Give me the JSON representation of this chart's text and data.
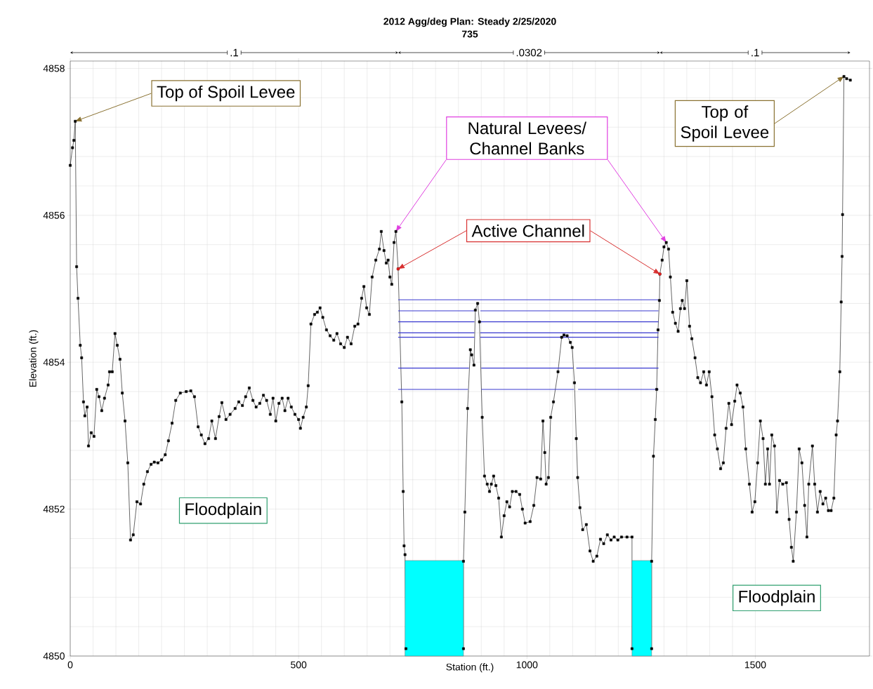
{
  "chart_data": {
    "type": "line",
    "title": "2012 Agg/deg      Plan: Steady      2/25/2020",
    "subtitle": "735",
    "xlabel": "Station (ft.)",
    "ylabel": "Elevation (ft.)",
    "xlim": [
      0,
      1750
    ],
    "ylim": [
      4850,
      4858.1
    ],
    "xticks": [
      0,
      500,
      1000,
      1500
    ],
    "yticks": [
      4850,
      4852,
      4854,
      4856,
      4858
    ],
    "grid": true,
    "annotations": [
      ".1",
      ".0302",
      ".1",
      {
        "text": "Top of Spoil Levee",
        "x": 11,
        "y": 4857.28
      },
      {
        "text": "Top of Spoil Levee",
        "x": 1694,
        "y": 4857.89
      },
      "Natural Levees/ Channel Banks",
      {
        "text": "Active Channel",
        "x": 718,
        "y": 4855.27
      },
      "Floodplain",
      "Floodplain"
    ],
    "series": [
      {
        "color": "#000000",
        "marker": "square",
        "x": [
          0,
          5,
          8,
          11,
          14,
          17,
          22,
          25,
          29,
          32,
          37,
          40,
          46,
          52,
          58,
          63,
          69,
          75,
          83,
          86,
          92,
          98,
          103,
          109,
          114,
          120,
          126,
          132,
          138,
          146,
          154,
          161,
          169,
          177,
          184,
          192,
          200,
          208,
          215,
          223,
          231,
          241,
          254,
          264,
          272,
          280,
          287,
          295,
          303,
          310,
          318,
          326,
          332,
          341,
          350,
          361,
          369,
          377,
          384,
          392,
          400,
          407,
          415,
          423,
          430,
          438,
          444,
          450,
          457,
          464,
          470,
          477,
          484,
          492,
          500,
          504,
          510,
          517,
          521,
          527,
          535,
          541,
          547,
          553,
          561,
          569,
          577,
          584,
          592,
          600,
          607,
          615,
          623,
          630,
          638,
          643,
          649,
          655,
          661,
          669,
          677,
          681,
          687,
          692,
          696,
          700,
          704,
          709,
          713,
          718,
          726,
          729,
          731,
          733,
          735,
          861,
          861,
          864,
          870,
          876,
          879,
          884,
          887,
          892,
          896,
          902,
          907,
          913,
          918,
          922,
          927,
          932,
          938,
          944,
          950,
          956,
          962,
          968,
          976,
          984,
          990,
          996,
          1007,
          1015,
          1022,
          1030,
          1035,
          1039,
          1042,
          1047,
          1052,
          1058,
          1068,
          1076,
          1081,
          1088,
          1095,
          1099,
          1104,
          1108,
          1111,
          1116,
          1122,
          1130,
          1138,
          1145,
          1153,
          1161,
          1168,
          1176,
          1184,
          1191,
          1199,
          1207,
          1219,
          1230,
          1230,
          1273,
          1273,
          1277,
          1281,
          1284,
          1287,
          1290,
          1291,
          1296,
          1300,
          1305,
          1310,
          1314,
          1319,
          1325,
          1331,
          1336,
          1340,
          1345,
          1350,
          1356,
          1361,
          1368,
          1374,
          1380,
          1387,
          1393,
          1399,
          1405,
          1411,
          1417,
          1424,
          1430,
          1436,
          1442,
          1448,
          1455,
          1460,
          1467,
          1473,
          1479,
          1487,
          1493,
          1499,
          1505,
          1511,
          1517,
          1522,
          1527,
          1531,
          1536,
          1542,
          1547,
          1553,
          1560,
          1568,
          1574,
          1579,
          1583,
          1590,
          1596,
          1602,
          1608,
          1613,
          1617,
          1625,
          1630,
          1636,
          1642,
          1648,
          1654,
          1660,
          1666,
          1672,
          1677,
          1680,
          1685,
          1688,
          1690,
          1691,
          1694,
          1700,
          1708
        ],
        "values": [
          4856.68,
          4856.92,
          4857.02,
          4857.28,
          4855.3,
          4854.87,
          4854.23,
          4854.06,
          4853.46,
          4853.27,
          4853.39,
          4852.86,
          4853.04,
          4852.99,
          4853.63,
          4853.53,
          4853.34,
          4853.51,
          4853.69,
          4853.87,
          4853.87,
          4854.39,
          4854.23,
          4854.04,
          4853.58,
          4853.2,
          4852.63,
          4851.58,
          4851.65,
          4852.1,
          4852.07,
          4852.34,
          4852.51,
          4852.61,
          4852.64,
          4852.63,
          4852.67,
          4852.74,
          4852.93,
          4853.17,
          4853.48,
          4853.58,
          4853.6,
          4853.61,
          4853.53,
          4853.12,
          4853.01,
          4852.89,
          4852.96,
          4853.2,
          4852.96,
          4853.26,
          4853.45,
          4853.22,
          4853.29,
          4853.37,
          4853.46,
          4853.41,
          4853.53,
          4853.65,
          4853.48,
          4853.39,
          4853.44,
          4853.55,
          4853.48,
          4853.29,
          4853.51,
          4853.2,
          4853.44,
          4853.51,
          4853.34,
          4853.51,
          4853.39,
          4853.29,
          4853.22,
          4853.1,
          4853.25,
          4853.39,
          4853.68,
          4854.52,
          4854.65,
          4854.68,
          4854.74,
          4854.61,
          4854.44,
          4854.36,
          4854.3,
          4854.39,
          4854.25,
          4854.2,
          4854.34,
          4854.25,
          4854.49,
          4854.52,
          4854.87,
          4855.03,
          4854.74,
          4854.65,
          4855.16,
          4855.39,
          4855.54,
          4855.78,
          4855.52,
          4855.35,
          4855.39,
          4855.16,
          4855.06,
          4855.63,
          4855.78,
          4855.27,
          4853.46,
          4852.24,
          4851.5,
          4851.38,
          4850.1,
          4850.1,
          4851.29,
          4851.96,
          4853.37,
          4854.17,
          4854.1,
          4853.96,
          4854.71,
          4854.8,
          4854.55,
          4853.25,
          4852.45,
          4852.34,
          4852.24,
          4852.34,
          4852.45,
          4852.32,
          4852.15,
          4851.62,
          4851.91,
          4852.1,
          4852.03,
          4852.24,
          4852.24,
          4852.2,
          4852.0,
          4851.81,
          4851.83,
          4852.05,
          4852.43,
          4852.41,
          4853.2,
          4852.77,
          4852.34,
          4852.43,
          4853.25,
          4853.46,
          4853.87,
          4854.34,
          4854.37,
          4854.36,
          4854.27,
          4854.2,
          4853.72,
          4852.96,
          4852.43,
          4852.02,
          4851.72,
          4851.79,
          4851.43,
          4851.29,
          4851.36,
          4851.59,
          4851.53,
          4851.65,
          4851.58,
          4851.62,
          4851.58,
          4851.62,
          4851.62,
          4851.62,
          4850.1,
          4850.1,
          4851.29,
          4852.72,
          4853.22,
          4853.63,
          4854.44,
          4854.84,
          4855.2,
          4855.39,
          4855.57,
          4855.63,
          4855.54,
          4855.16,
          4854.68,
          4854.53,
          4854.42,
          4854.73,
          4854.84,
          4854.73,
          4855.11,
          4854.49,
          4854.32,
          4854.06,
          4853.79,
          4853.72,
          4853.87,
          4853.69,
          4853.87,
          4853.53,
          4853.01,
          4852.82,
          4852.55,
          4852.63,
          4853.1,
          4853.44,
          4853.15,
          4853.47,
          4853.69,
          4853.58,
          4853.39,
          4852.82,
          4852.34,
          4851.96,
          4852.1,
          4852.63,
          4853.2,
          4852.96,
          4852.34,
          4852.82,
          4852.34,
          4853.01,
          4852.86,
          4851.96,
          4852.39,
          4852.34,
          4852.36,
          4851.86,
          4851.48,
          4851.29,
          4851.96,
          4852.82,
          4852.63,
          4852.05,
          4851.62,
          4852.34,
          4852.86,
          4852.34,
          4851.96,
          4852.24,
          4852.07,
          4852.15,
          4851.98,
          4851.98,
          4852.15,
          4853.01,
          4853.2,
          4853.87,
          4854.82,
          4855.44,
          4856.01,
          4857.89,
          4857.86,
          4857.84
        ]
      },
      {
        "type": "line",
        "color": "#3a3ad0",
        "x": [
          718,
          1288
        ],
        "values": [
          4854.85,
          4854.85
        ]
      },
      {
        "type": "line",
        "color": "#3a3ad0",
        "x": [
          718,
          885,
          891,
          898,
          1288
        ],
        "values": [
          4854.7,
          4854.7,
          null,
          4854.7,
          4854.7
        ]
      },
      {
        "type": "line",
        "color": "#3a3ad0",
        "x": [
          718,
          885,
          891,
          898,
          1288
        ],
        "values": [
          4854.55,
          4854.55,
          null,
          4854.55,
          4854.55
        ]
      },
      {
        "type": "line",
        "color": "#3a3ad0",
        "x": [
          718,
          885,
          891,
          898,
          1288
        ],
        "values": [
          4854.4,
          4854.4,
          null,
          4854.4,
          4854.4
        ]
      },
      {
        "type": "line",
        "color": "#3a3ad0",
        "x": [
          718,
          885,
          891,
          898,
          1288
        ],
        "values": [
          4854.34,
          4854.34,
          null,
          4854.34,
          4854.34
        ]
      },
      {
        "type": "line",
        "color": "#3a3ad0",
        "x": [
          718,
          873,
          886,
          900,
          1101,
          1104,
          1108,
          1288
        ],
        "values": [
          4853.92,
          4853.92,
          null,
          4853.92,
          4853.92,
          null,
          4853.92,
          4853.92
        ]
      },
      {
        "type": "line",
        "color": "#3a3ad0",
        "x": [
          718,
          871,
          886,
          900,
          1103,
          1107,
          1112,
          1288
        ],
        "values": [
          4853.63,
          4853.63,
          null,
          4853.63,
          4853.63,
          null,
          4853.63,
          4853.63
        ]
      },
      {
        "type": "area",
        "color": "#00ffff",
        "x": [
          733,
          861
        ],
        "values": [
          4851.3,
          4851.3
        ]
      },
      {
        "type": "area",
        "color": "#00ffff",
        "x": [
          1230,
          1273
        ],
        "values": [
          4851.3,
          4851.3
        ]
      },
      {
        "type": "scatter",
        "color": "#e02020",
        "marker": "circle",
        "x": [
          718,
          1291
        ],
        "values": [
          4855.27,
          4855.2
        ]
      }
    ]
  }
}
